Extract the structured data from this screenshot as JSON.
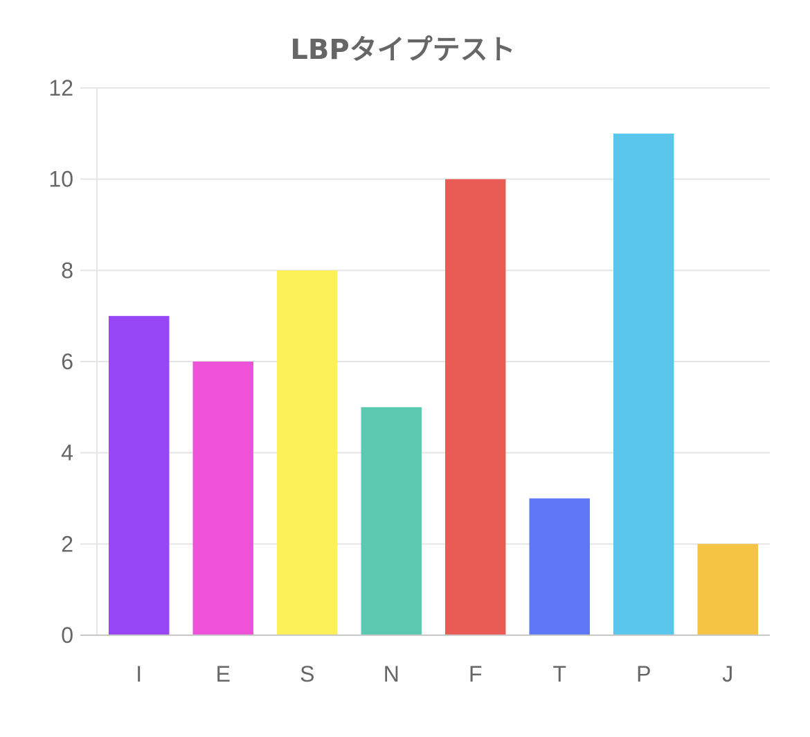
{
  "chart_data": {
    "type": "bar",
    "title": "LBPタイプテスト",
    "xlabel": "",
    "ylabel": "",
    "categories": [
      "I",
      "E",
      "S",
      "N",
      "F",
      "T",
      "P",
      "J"
    ],
    "values": [
      7,
      6,
      8,
      5,
      10,
      3,
      11,
      2
    ],
    "colors": [
      "#9747f5",
      "#ee52d8",
      "#fcf158",
      "#5bc8b0",
      "#e95c56",
      "#6077f5",
      "#5bc6ec",
      "#f5c444"
    ],
    "ylim": [
      0,
      12
    ],
    "yticks": [
      0,
      2,
      4,
      6,
      8,
      10,
      12
    ],
    "grid": true,
    "legend": "none"
  }
}
